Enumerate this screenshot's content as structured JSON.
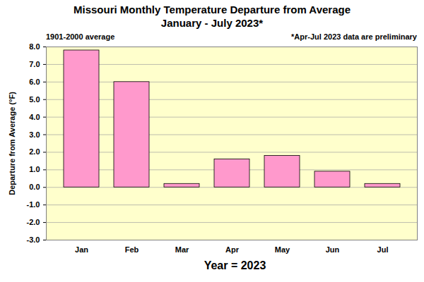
{
  "chart_data": {
    "type": "bar",
    "title": "Missouri Monthly Temperature Departure from Average",
    "subtitle": "January - July 2023*",
    "annotations": [
      "1901-2000 average",
      "*Apr-Jul 2023 data are preliminary"
    ],
    "x_label": "Year = 2023",
    "y_label": "Departure from Average (°F)",
    "categories": [
      "Jan",
      "Feb",
      "Mar",
      "Apr",
      "May",
      "Jun",
      "Jul"
    ],
    "values": [
      7.8,
      6.0,
      0.2,
      1.6,
      1.8,
      0.9,
      0.2
    ],
    "color": "#ff99cc",
    "ylim": [
      -3,
      8
    ],
    "yticks": [
      {
        "value": -3,
        "label": "-3.0"
      },
      {
        "value": -2,
        "label": "-2.0"
      },
      {
        "value": -1,
        "label": "-1.0"
      },
      {
        "value": 0,
        "label": "0.0"
      },
      {
        "value": 1,
        "label": "1.0"
      },
      {
        "value": 2,
        "label": "2.0"
      },
      {
        "value": 3,
        "label": "3.0"
      },
      {
        "value": 4,
        "label": "4.0"
      },
      {
        "value": 5,
        "label": "5.0"
      },
      {
        "value": 6,
        "label": "6.0"
      },
      {
        "value": 7,
        "label": "7.0"
      },
      {
        "value": 8,
        "label": "8.0"
      }
    ],
    "grid": true
  }
}
